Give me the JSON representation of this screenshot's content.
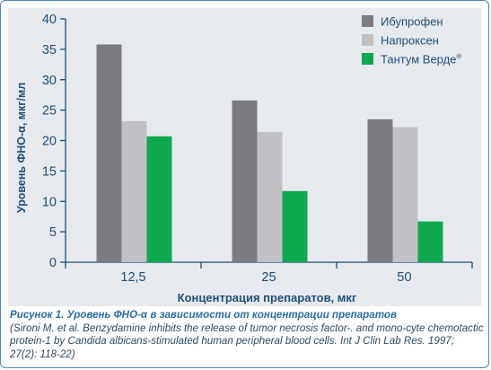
{
  "chart_data": {
    "type": "bar",
    "categories": [
      "12,5",
      "25",
      "50"
    ],
    "series": [
      {
        "name": "Ибупрофен",
        "color": "#7a7c7f",
        "values": [
          35.8,
          26.6,
          23.5
        ]
      },
      {
        "name": "Напроксен",
        "color": "#bfc1c4",
        "values": [
          23.2,
          21.4,
          22.2
        ]
      },
      {
        "name": "Тантум Верде",
        "name_superscript": "®",
        "color": "#10a84e",
        "values": [
          20.7,
          11.7,
          6.7
        ]
      }
    ],
    "xlabel": "Концентрация препаратов, мкг",
    "ylabel": "Уровень ФНО-α, мкг/мл",
    "ylim": [
      0,
      40
    ],
    "yticks": [
      0,
      5,
      10,
      15,
      20,
      25,
      30,
      35,
      40
    ],
    "grid": false,
    "legend_position": "top-right"
  },
  "caption": {
    "title": "Рисунок 1.  Уровень ФНО-α в зависимости от концентрации препаратов",
    "source": "(Sironi M. et al. Benzydamine inhibits the release of tumor necrosis factor-. and mono-cyte chemotactic protein-1 by Candida albicans-stimulated human peripheral blood cells. Int J Clin Lab Res. 1997; 27(2): 118-22)"
  }
}
